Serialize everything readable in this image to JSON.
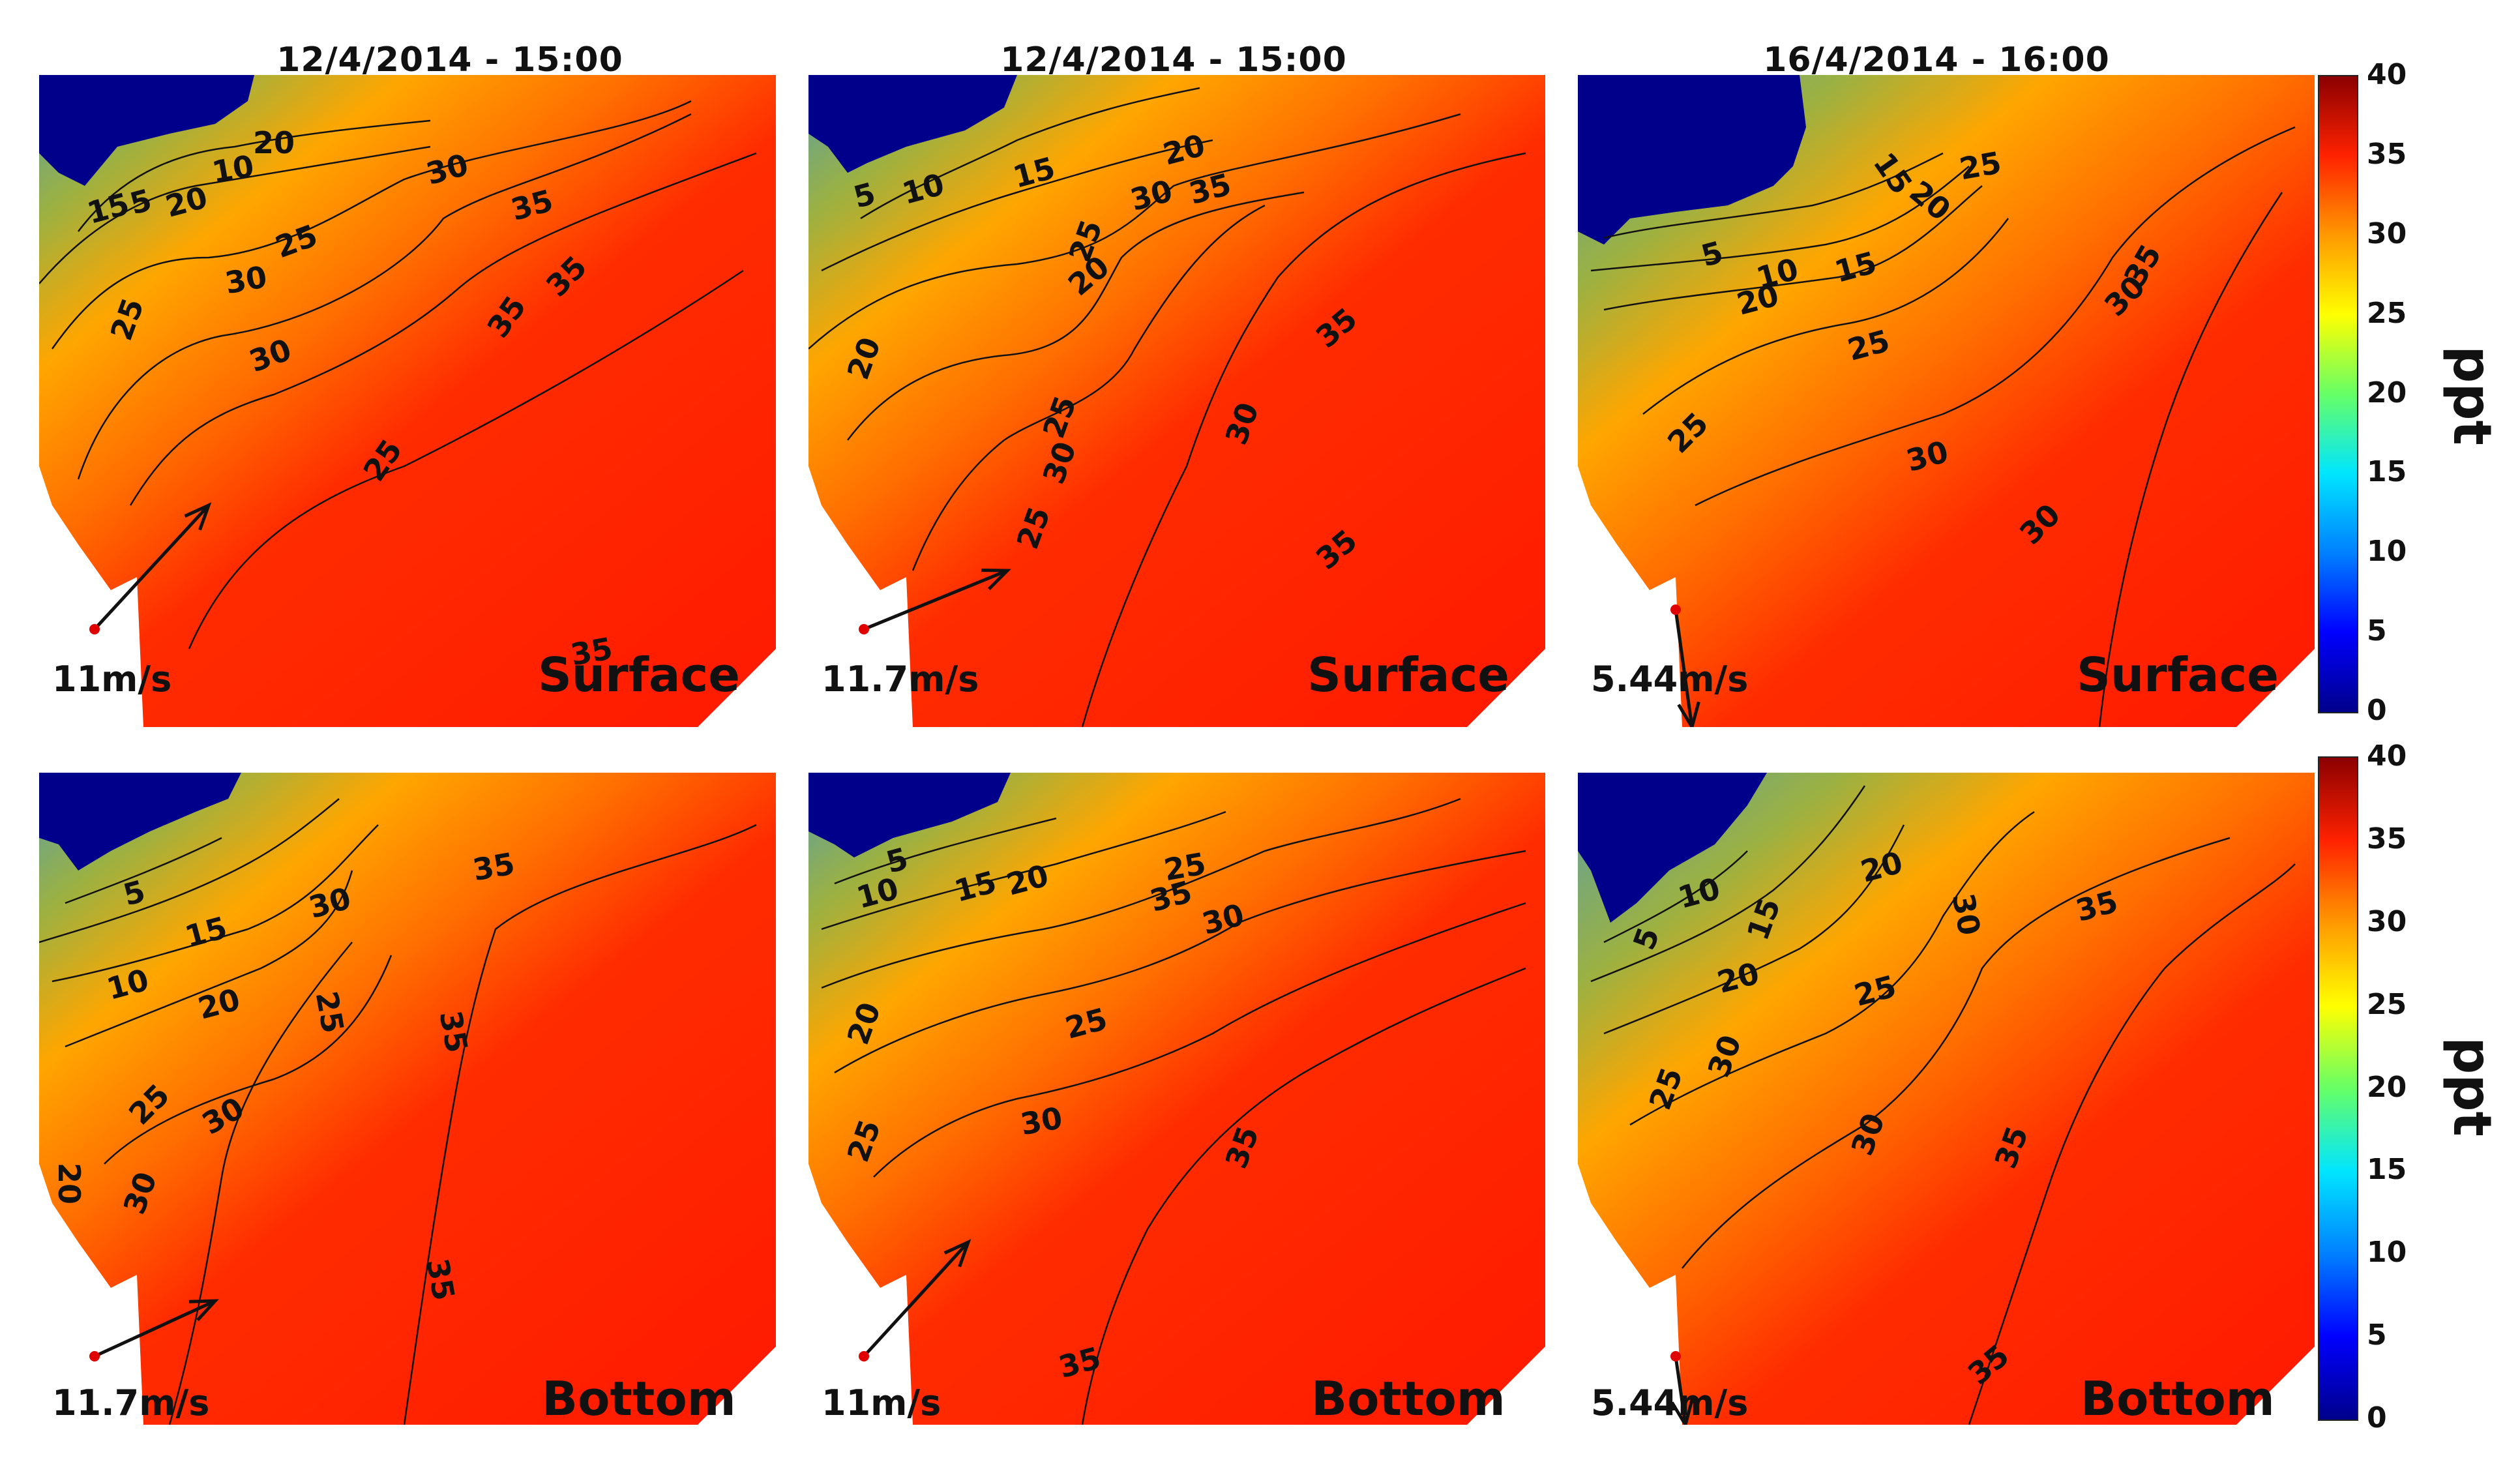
{
  "titles": [
    "12/4/2014 - 15:00",
    "12/4/2014 - 15:00",
    "16/4/2014 - 16:00"
  ],
  "colorbar": {
    "unit": "ppt",
    "ticks": [
      "40",
      "35",
      "30",
      "25",
      "20",
      "15",
      "10",
      "5",
      "0"
    ],
    "colors": [
      "#00008b",
      "#0000ff",
      "#0080ff",
      "#00e5ff",
      "#66ff66",
      "#ffff00",
      "#ff9900",
      "#ff2200",
      "#8b0000"
    ]
  },
  "panels": [
    {
      "layer": "Surface",
      "wind": "11m/s",
      "contour_labels": [
        "5",
        "10",
        "15",
        "20",
        "25",
        "30",
        "35",
        "20",
        "25",
        "30",
        "25",
        "30",
        "35",
        "35",
        "35"
      ]
    },
    {
      "layer": "Surface",
      "wind": "11.7m/s",
      "contour_labels": [
        "5",
        "10",
        "15",
        "20",
        "25",
        "30",
        "35",
        "20",
        "20",
        "25",
        "25",
        "30",
        "30",
        "35",
        "35"
      ]
    },
    {
      "layer": "Surface",
      "wind": "5.44m/s",
      "contour_labels": [
        "15",
        "20",
        "25",
        "30",
        "5",
        "10",
        "15",
        "20",
        "25",
        "30",
        "25",
        "30",
        "35"
      ]
    },
    {
      "layer": "Bottom",
      "wind": "11.7m/s",
      "contour_labels": [
        "5",
        "15",
        "30",
        "35",
        "10",
        "20",
        "25",
        "25",
        "30",
        "35",
        "20",
        "30",
        "35"
      ]
    },
    {
      "layer": "Bottom",
      "wind": "11m/s",
      "contour_labels": [
        "5",
        "10",
        "15",
        "20",
        "25",
        "30",
        "35",
        "20",
        "25",
        "25",
        "30",
        "35",
        "35"
      ]
    },
    {
      "layer": "Bottom",
      "wind": "5.44m/s",
      "contour_labels": [
        "5",
        "10",
        "15",
        "20",
        "30",
        "35",
        "20",
        "25",
        "30",
        "25",
        "30",
        "35",
        "35"
      ]
    }
  ]
}
